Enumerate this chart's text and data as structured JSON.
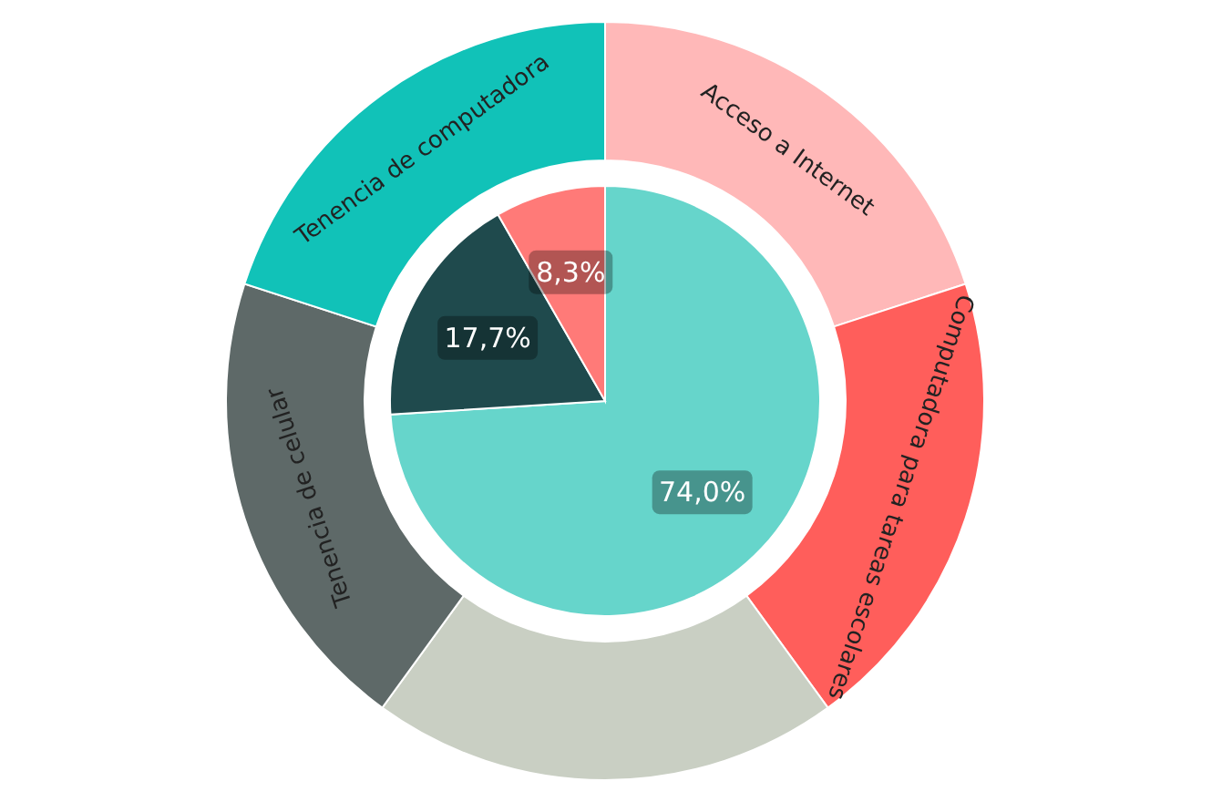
{
  "chart_data": [
    {
      "type": "pie",
      "categories": [
        null,
        null,
        null
      ],
      "values": [
        74.0,
        17.7,
        8.3
      ],
      "colors": [
        "#66d5cb",
        "#1f4a4d",
        "#ff7a78"
      ],
      "value_labels": [
        "74,0%",
        "17,7%",
        "8,3%"
      ]
    },
    {
      "type": "donut",
      "categories": [
        "Acceso a Internet",
        "Computadora para tareas escolares",
        null,
        "Tenencia de celular",
        "Tenencia de computadora"
      ],
      "values": [
        20,
        20,
        20,
        20,
        20
      ],
      "colors": [
        "#ffb8b8",
        "#ff5e5b",
        "#c9cfc3",
        "#5e6968",
        "#11c2b8"
      ]
    }
  ]
}
